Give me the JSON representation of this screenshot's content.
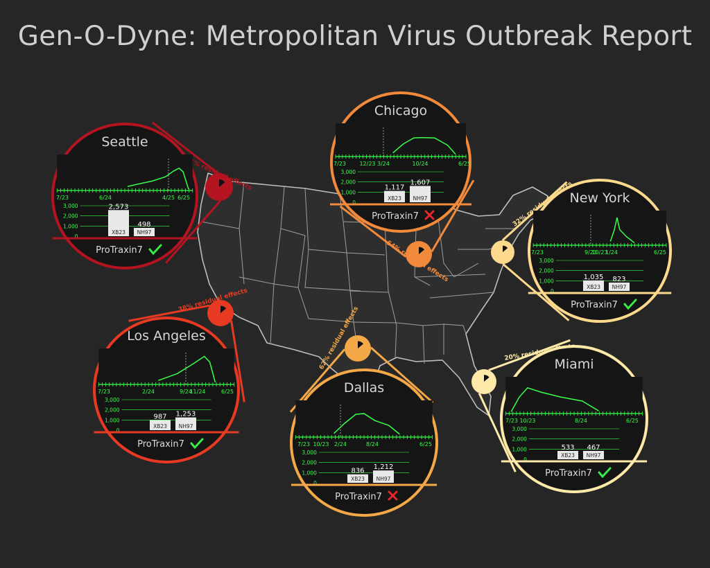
{
  "title": "Gen-O-Dyne:  Metropolitan Virus Outbreak Report",
  "colors": {
    "background": "#262626",
    "map_fill": "#2e2e2e",
    "map_stroke": "#bfbfbf",
    "curve": "#39ff4a",
    "check": "#39e84a",
    "cross": "#e8252a"
  },
  "bar_axis_ticks": [
    "3,000",
    "2,000",
    "1,000",
    "0"
  ],
  "drug_name": "ProTraxin7",
  "icons": {
    "success": "check-icon",
    "failure": "cross-icon"
  },
  "chart_data": [
    {
      "type": "line",
      "title": "Seattle",
      "x_ticks": [
        "7/23",
        "6/24",
        "4/25",
        "6/25"
      ],
      "marker": "4/25",
      "bar": {
        "type": "bar",
        "categories": [
          "XB23",
          "NH97"
        ],
        "values": [
          2573,
          498
        ],
        "value_labels": [
          "2,573",
          "498"
        ],
        "ylim": [
          0,
          3000
        ]
      },
      "residual_effects_percent": 41,
      "residual_label": "41% residual effects",
      "result": "success",
      "color": "#b3141f"
    },
    {
      "type": "line",
      "title": "Chicago",
      "x_ticks": [
        "7/23",
        "12/23",
        "3/24",
        "10/24",
        "6/25"
      ],
      "marker": "3/24",
      "bar": {
        "type": "bar",
        "categories": [
          "XB23",
          "NH97"
        ],
        "values": [
          1117,
          1607
        ],
        "value_labels": [
          "1,117",
          "1,607"
        ],
        "ylim": [
          0,
          3000
        ]
      },
      "residual_effects_percent": 54,
      "residual_label": "54% residual effects",
      "result": "failure",
      "color": "#f28a3c"
    },
    {
      "type": "line",
      "title": "New York",
      "x_ticks": [
        "7/23",
        "9/23",
        "10/23",
        "1/24",
        "6/25"
      ],
      "marker": "9/23",
      "bar": {
        "type": "bar",
        "categories": [
          "XB23",
          "NH97"
        ],
        "values": [
          1035,
          823
        ],
        "value_labels": [
          "1,035",
          "823"
        ],
        "ylim": [
          0,
          3000
        ]
      },
      "residual_effects_percent": 32,
      "residual_label": "32% residual effects",
      "result": "success",
      "color": "#fcd98c"
    },
    {
      "type": "line",
      "title": "Los Angeles",
      "x_ticks": [
        "7/23",
        "2/24",
        "9/24",
        "11/24",
        "6/25"
      ],
      "marker": "9/24",
      "bar": {
        "type": "bar",
        "categories": [
          "XB23",
          "NH97"
        ],
        "values": [
          987,
          1253
        ],
        "value_labels": [
          "987",
          "1,253"
        ],
        "ylim": [
          0,
          3000
        ]
      },
      "residual_effects_percent": 38,
      "residual_label": "38% residual effects",
      "result": "success",
      "color": "#e83a22"
    },
    {
      "type": "line",
      "title": "Dallas",
      "x_ticks": [
        "7/23",
        "10/23",
        "2/24",
        "8/24",
        "6/25"
      ],
      "marker": "2/24",
      "bar": {
        "type": "bar",
        "categories": [
          "XB23",
          "NH97"
        ],
        "values": [
          836,
          1212
        ],
        "value_labels": [
          "836",
          "1,212"
        ],
        "ylim": [
          0,
          3000
        ]
      },
      "residual_effects_percent": 62,
      "residual_label": "62% residual effects",
      "result": "failure",
      "color": "#f5a847"
    },
    {
      "type": "line",
      "title": "Miami",
      "x_ticks": [
        "7/23",
        "10/23",
        "8/24",
        "6/25"
      ],
      "marker": "",
      "bar": {
        "type": "bar",
        "categories": [
          "XB23",
          "NH97"
        ],
        "values": [
          533,
          467
        ],
        "value_labels": [
          "533",
          "467"
        ],
        "ylim": [
          0,
          3000
        ]
      },
      "residual_effects_percent": 20,
      "residual_label": "20% residual effects",
      "result": "success",
      "color": "#fde9a8"
    }
  ]
}
